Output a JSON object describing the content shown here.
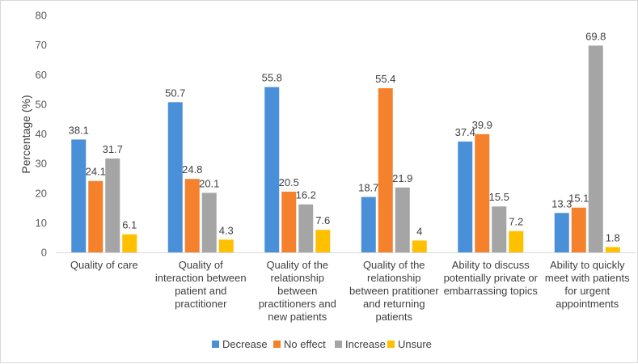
{
  "chart_data": {
    "type": "bar",
    "title": "",
    "xlabel": "",
    "ylabel": "Percentage (%)",
    "ylim": [
      0,
      80
    ],
    "ytick_step": 10,
    "grid": false,
    "legend_position": "bottom",
    "categories": [
      [
        "Quality of care"
      ],
      [
        "Quality of",
        "interaction between",
        "patient and",
        "practitioner"
      ],
      [
        "Quality of the",
        "relationship",
        "between",
        "practitioners and",
        "new patients"
      ],
      [
        "Quality of the",
        "relationship",
        "between pratitioner",
        "and returning",
        "patients"
      ],
      [
        "Ability to discuss",
        "potentially private or",
        "embarrassing topics"
      ],
      [
        "Ability to quickly",
        "meet with patients",
        "for urgent",
        "appointments"
      ]
    ],
    "series": [
      {
        "name": "Decrease",
        "color": "#4a90d9",
        "values": [
          38.1,
          50.7,
          55.8,
          18.7,
          37.4,
          13.3
        ],
        "labels": [
          "38.1",
          "50.7",
          "55.8",
          "18.7",
          "37.4",
          "13.3"
        ]
      },
      {
        "name": "No effect",
        "color": "#f5812d",
        "values": [
          24.1,
          24.8,
          20.5,
          55.4,
          39.9,
          15.1
        ],
        "labels": [
          "24.1",
          "24.8",
          "20.5",
          "55.4",
          "39.9",
          "15.1"
        ]
      },
      {
        "name": "Increase",
        "color": "#a5a5a5",
        "values": [
          31.7,
          20.1,
          16.2,
          21.9,
          15.5,
          69.8
        ],
        "labels": [
          "31.7",
          "20.1",
          "16.2",
          "21.9",
          "15.5",
          "69.8"
        ]
      },
      {
        "name": "Unsure",
        "color": "#ffc000",
        "values": [
          6.1,
          4.3,
          7.6,
          4,
          7.2,
          1.8
        ],
        "labels": [
          "6.1",
          "4.3",
          "7.6",
          "4",
          "7.2",
          "1.8"
        ]
      }
    ]
  }
}
